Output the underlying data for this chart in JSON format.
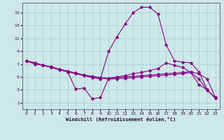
{
  "xlabel": "Windchill (Refroidissement éolien,°C)",
  "bg_color": "#cce8e8",
  "line_color": "#880088",
  "grid_color": "#aacccc",
  "xlim": [
    -0.5,
    23.5
  ],
  "ylim": [
    0,
    16.5
  ],
  "xticks": [
    0,
    1,
    2,
    3,
    4,
    5,
    6,
    7,
    8,
    9,
    10,
    11,
    12,
    13,
    14,
    15,
    16,
    17,
    18,
    19,
    20,
    21,
    22,
    23
  ],
  "yticks": [
    1,
    3,
    5,
    7,
    9,
    11,
    13,
    15
  ],
  "line1_x": [
    0,
    1,
    2,
    3,
    4,
    5,
    6,
    7,
    8,
    9,
    10,
    11,
    12,
    13,
    14,
    15,
    16,
    17,
    18,
    19,
    20,
    21,
    22,
    23
  ],
  "line1_y": [
    7.5,
    7.2,
    6.8,
    6.5,
    6.2,
    5.9,
    5.6,
    5.3,
    5.1,
    4.9,
    4.8,
    4.9,
    5.0,
    5.1,
    5.2,
    5.3,
    5.4,
    5.5,
    5.6,
    5.7,
    5.8,
    5.5,
    4.7,
    1.8
  ],
  "line2_x": [
    0,
    1,
    2,
    3,
    4,
    5,
    6,
    7,
    8,
    9,
    10,
    11,
    12,
    13,
    14,
    15,
    16,
    17,
    18,
    19,
    20,
    21,
    22,
    23
  ],
  "line2_y": [
    7.5,
    7.2,
    6.8,
    6.5,
    6.2,
    5.9,
    5.6,
    5.3,
    5.0,
    4.8,
    4.7,
    4.7,
    4.8,
    4.9,
    5.0,
    5.1,
    5.2,
    5.3,
    5.4,
    5.5,
    5.7,
    4.7,
    2.9,
    1.8
  ],
  "line3_x": [
    0,
    1,
    2,
    3,
    4,
    5,
    6,
    7,
    8,
    9,
    10,
    11,
    12,
    13,
    14,
    15,
    16,
    17,
    18,
    19,
    20,
    21,
    22,
    23
  ],
  "line3_y": [
    7.5,
    7.2,
    6.8,
    6.5,
    6.1,
    5.8,
    5.5,
    5.2,
    4.9,
    4.7,
    9.0,
    11.2,
    13.2,
    15.0,
    15.8,
    15.8,
    14.8,
    10.0,
    7.5,
    7.3,
    7.2,
    5.8,
    3.0,
    1.7
  ],
  "line4_x": [
    0,
    1,
    2,
    3,
    4,
    5,
    6,
    7,
    8,
    9,
    10,
    11,
    12,
    13,
    14,
    15,
    16,
    17,
    18,
    19,
    20,
    21,
    22,
    23
  ],
  "line4_y": [
    7.5,
    7.0,
    6.8,
    6.6,
    6.2,
    5.8,
    3.1,
    3.3,
    1.6,
    1.8,
    4.8,
    5.0,
    5.2,
    5.5,
    5.7,
    6.0,
    6.3,
    7.2,
    6.8,
    6.5,
    5.7,
    3.8,
    3.0,
    1.7
  ]
}
